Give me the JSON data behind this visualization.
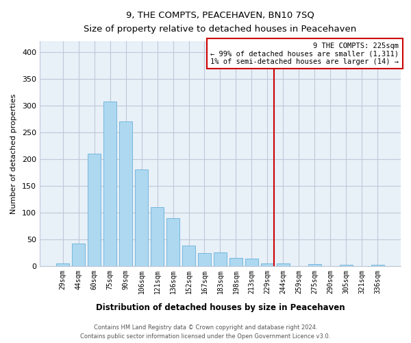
{
  "title": "9, THE COMPTS, PEACEHAVEN, BN10 7SQ",
  "subtitle": "Size of property relative to detached houses in Peacehaven",
  "xlabel": "Distribution of detached houses by size in Peacehaven",
  "ylabel": "Number of detached properties",
  "bin_labels": [
    "29sqm",
    "44sqm",
    "60sqm",
    "75sqm",
    "90sqm",
    "106sqm",
    "121sqm",
    "136sqm",
    "152sqm",
    "167sqm",
    "183sqm",
    "198sqm",
    "213sqm",
    "229sqm",
    "244sqm",
    "259sqm",
    "275sqm",
    "290sqm",
    "305sqm",
    "321sqm",
    "336sqm"
  ],
  "bar_values": [
    5,
    42,
    210,
    307,
    270,
    180,
    110,
    90,
    38,
    24,
    26,
    16,
    14,
    5,
    5,
    0,
    4,
    0,
    2,
    0,
    2
  ],
  "bar_color": "#add8f0",
  "bar_edge_color": "#6ab0d8",
  "plot_bg_color": "#e8f0f8",
  "highlight_line_color": "#cc0000",
  "annotation_title": "9 THE COMPTS: 225sqm",
  "annotation_line1": "← 99% of detached houses are smaller (1,311)",
  "annotation_line2": "1% of semi-detached houses are larger (14) →",
  "annotation_box_facecolor": "white",
  "annotation_box_edgecolor": "#cc0000",
  "ylim": [
    0,
    420
  ],
  "yticks": [
    0,
    50,
    100,
    150,
    200,
    250,
    300,
    350,
    400
  ],
  "grid_color": "#c0c8d8",
  "footer_line1": "Contains HM Land Registry data © Crown copyright and database right 2024.",
  "footer_line2": "Contains public sector information licensed under the Open Government Licence v3.0."
}
